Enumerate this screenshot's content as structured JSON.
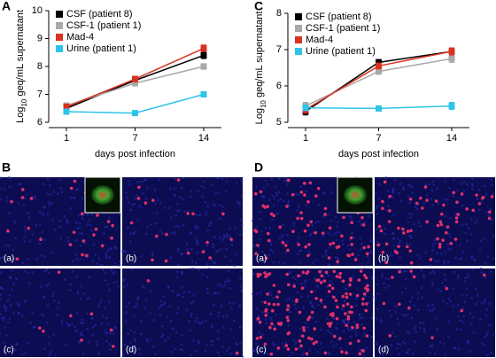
{
  "chart_data": [
    {
      "type": "line",
      "ylabel_parts": [
        "Log",
        "10",
        " geq/mL supernatant"
      ],
      "xlabel": "days post infection",
      "categories": [
        "1",
        "7",
        "14"
      ],
      "ylim": [
        6,
        10
      ],
      "yticks": [
        6,
        7,
        8,
        9,
        10
      ],
      "legend": "top-left",
      "series": [
        {
          "name": "CSF (patient 8)",
          "color": "#000000",
          "values": [
            6.5,
            7.5,
            8.4
          ],
          "errors": [
            0.1,
            0.1,
            0.12
          ]
        },
        {
          "name": "CSF-1 (patient 1)",
          "color": "#a8a8a8",
          "values": [
            6.6,
            7.4,
            8.0
          ],
          "errors": [
            0.08,
            0.1,
            0.1
          ]
        },
        {
          "name": "Mad-4",
          "color": "#d8321e",
          "values": [
            6.55,
            7.55,
            8.65
          ],
          "errors": [
            0.1,
            0.1,
            0.12
          ]
        },
        {
          "name": "Urine (patient 1)",
          "color": "#2ec4e8",
          "values": [
            6.38,
            6.33,
            7.0
          ],
          "errors": [
            0.08,
            0.08,
            0.08
          ]
        }
      ]
    },
    {
      "type": "line",
      "ylabel_parts": [
        "Log",
        "10",
        " geq/mL supernatant"
      ],
      "xlabel": "days post infection",
      "categories": [
        "1",
        "7",
        "14"
      ],
      "ylim": [
        5,
        8
      ],
      "yticks": [
        5,
        6,
        7,
        8
      ],
      "legend": "top-left",
      "series": [
        {
          "name": "CSF (patient 8)",
          "color": "#000000",
          "values": [
            5.3,
            6.65,
            6.95
          ],
          "errors": [
            0.1,
            0.08,
            0.1
          ]
        },
        {
          "name": "CSF-1 (patient 1)",
          "color": "#a8a8a8",
          "values": [
            5.45,
            6.4,
            6.75
          ],
          "errors": [
            0.1,
            0.08,
            0.1
          ]
        },
        {
          "name": "Mad-4",
          "color": "#d8321e",
          "values": [
            5.35,
            6.55,
            6.95
          ],
          "errors": [
            0.1,
            0.08,
            0.1
          ]
        },
        {
          "name": "Urine (patient 1)",
          "color": "#2ec4e8",
          "values": [
            5.4,
            5.38,
            5.45
          ],
          "errors": [
            0.08,
            0.06,
            0.1
          ]
        }
      ]
    }
  ],
  "panel_labels": [
    "A",
    "C",
    "B",
    "D"
  ],
  "image_panels": {
    "B": [
      "(a)",
      "(b)",
      "(c)",
      "(d)"
    ],
    "D": [
      "(a)",
      "(b)",
      "(c)",
      "(d)"
    ]
  }
}
